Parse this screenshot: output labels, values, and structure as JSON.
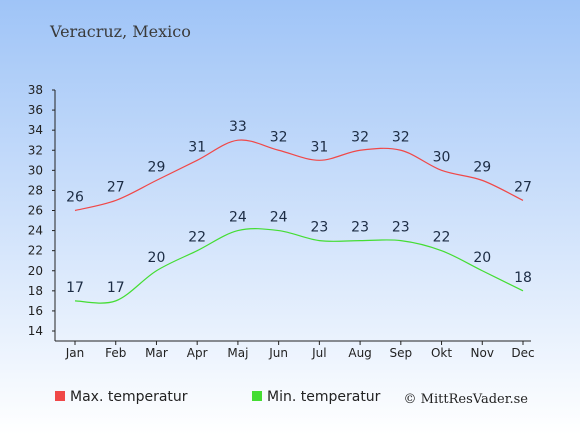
{
  "title": "Veracruz, Mexico",
  "copyright": "© MittResVader.se",
  "colors": {
    "background_top": "#9fc4f7",
    "background_bottom": "#ffffff",
    "max_series": "#f04848",
    "min_series": "#44dd33",
    "axis": "#222222"
  },
  "chart_data": {
    "type": "line",
    "title": "Veracruz, Mexico",
    "categories": [
      "Jan",
      "Feb",
      "Mar",
      "Apr",
      "Maj",
      "Jun",
      "Jul",
      "Aug",
      "Sep",
      "Okt",
      "Nov",
      "Dec"
    ],
    "ylim": [
      14,
      38
    ],
    "yticks": [
      14,
      16,
      18,
      20,
      22,
      24,
      26,
      28,
      30,
      32,
      34,
      36,
      38
    ],
    "grid": false,
    "legend_position": "bottom",
    "series": [
      {
        "name": "Max. temperatur",
        "color": "#f04848",
        "values": [
          26,
          27,
          29,
          31,
          33,
          32,
          31,
          32,
          32,
          30,
          29,
          27
        ]
      },
      {
        "name": "Min. temperatur",
        "color": "#44dd33",
        "values": [
          17,
          17,
          20,
          22,
          24,
          24,
          23,
          23,
          23,
          22,
          20,
          18
        ]
      }
    ]
  }
}
